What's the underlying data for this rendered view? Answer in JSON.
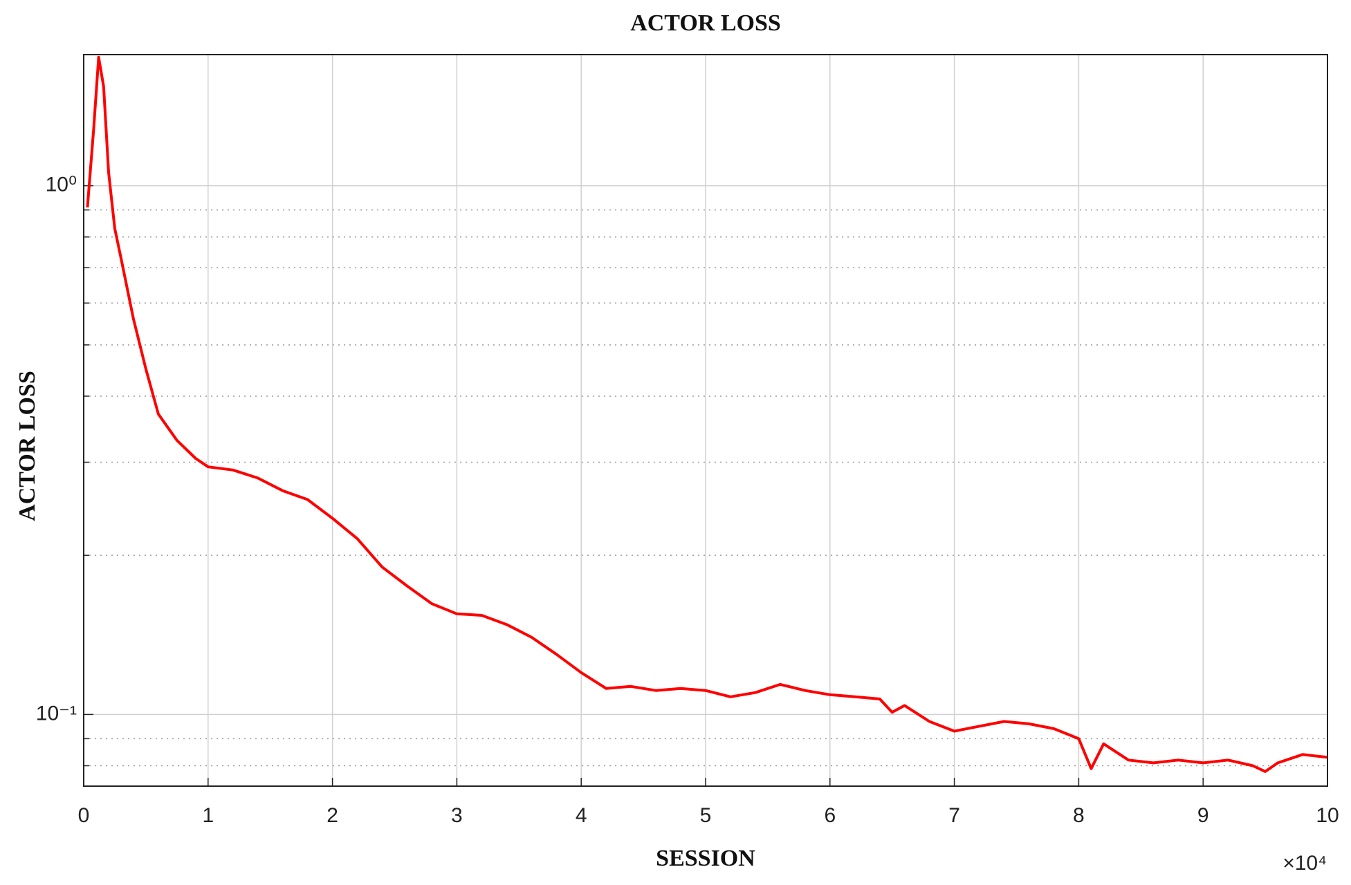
{
  "chart_data": {
    "type": "line",
    "title": "ACTOR LOSS",
    "x_label": "SESSION",
    "y_label": "ACTOR LOSS",
    "x_multiplier": "×10⁴",
    "x": [
      0.03,
      0.08,
      0.12,
      0.16,
      0.2,
      0.25,
      0.3,
      0.4,
      0.5,
      0.6,
      0.75,
      0.9,
      1.0,
      1.2,
      1.4,
      1.6,
      1.8,
      2.0,
      2.2,
      2.4,
      2.6,
      2.8,
      3.0,
      3.2,
      3.4,
      3.6,
      3.8,
      4.0,
      4.2,
      4.4,
      4.6,
      4.8,
      5.0,
      5.2,
      5.4,
      5.6,
      5.8,
      6.0,
      6.2,
      6.4,
      6.5,
      6.6,
      6.8,
      7.0,
      7.2,
      7.4,
      7.6,
      7.8,
      8.0,
      8.1,
      8.2,
      8.4,
      8.6,
      8.8,
      9.0,
      9.2,
      9.4,
      9.5,
      9.6,
      9.8,
      10.0
    ],
    "series": [
      {
        "name": "Actor loss",
        "color": "#ff0000",
        "values": [
          0.91,
          1.28,
          1.75,
          1.54,
          1.06,
          0.83,
          0.73,
          0.56,
          0.45,
          0.37,
          0.33,
          0.305,
          0.294,
          0.29,
          0.28,
          0.265,
          0.255,
          0.235,
          0.215,
          0.19,
          0.175,
          0.162,
          0.155,
          0.154,
          0.148,
          0.14,
          0.13,
          0.12,
          0.112,
          0.113,
          0.111,
          0.112,
          0.111,
          0.108,
          0.11,
          0.114,
          0.111,
          0.109,
          0.108,
          0.107,
          0.101,
          0.104,
          0.097,
          0.093,
          0.095,
          0.097,
          0.096,
          0.094,
          0.09,
          0.079,
          0.088,
          0.082,
          0.081,
          0.082,
          0.081,
          0.082,
          0.08,
          0.078,
          0.081,
          0.084,
          0.083
        ]
      }
    ],
    "xlim": [
      0,
      10
    ],
    "xticks": [
      0,
      1,
      2,
      3,
      4,
      5,
      6,
      7,
      8,
      9,
      10
    ],
    "ylim": [
      0.0732,
      1.77
    ],
    "y_scale": "log",
    "yticks": [
      {
        "value": 0.1,
        "label": "10⁻¹"
      },
      {
        "value": 1,
        "label": "10⁰"
      }
    ],
    "yminorticks": [
      0.08,
      0.09,
      0.2,
      0.3,
      0.4,
      0.5,
      0.6,
      0.7,
      0.8,
      0.9
    ],
    "grid": true
  }
}
